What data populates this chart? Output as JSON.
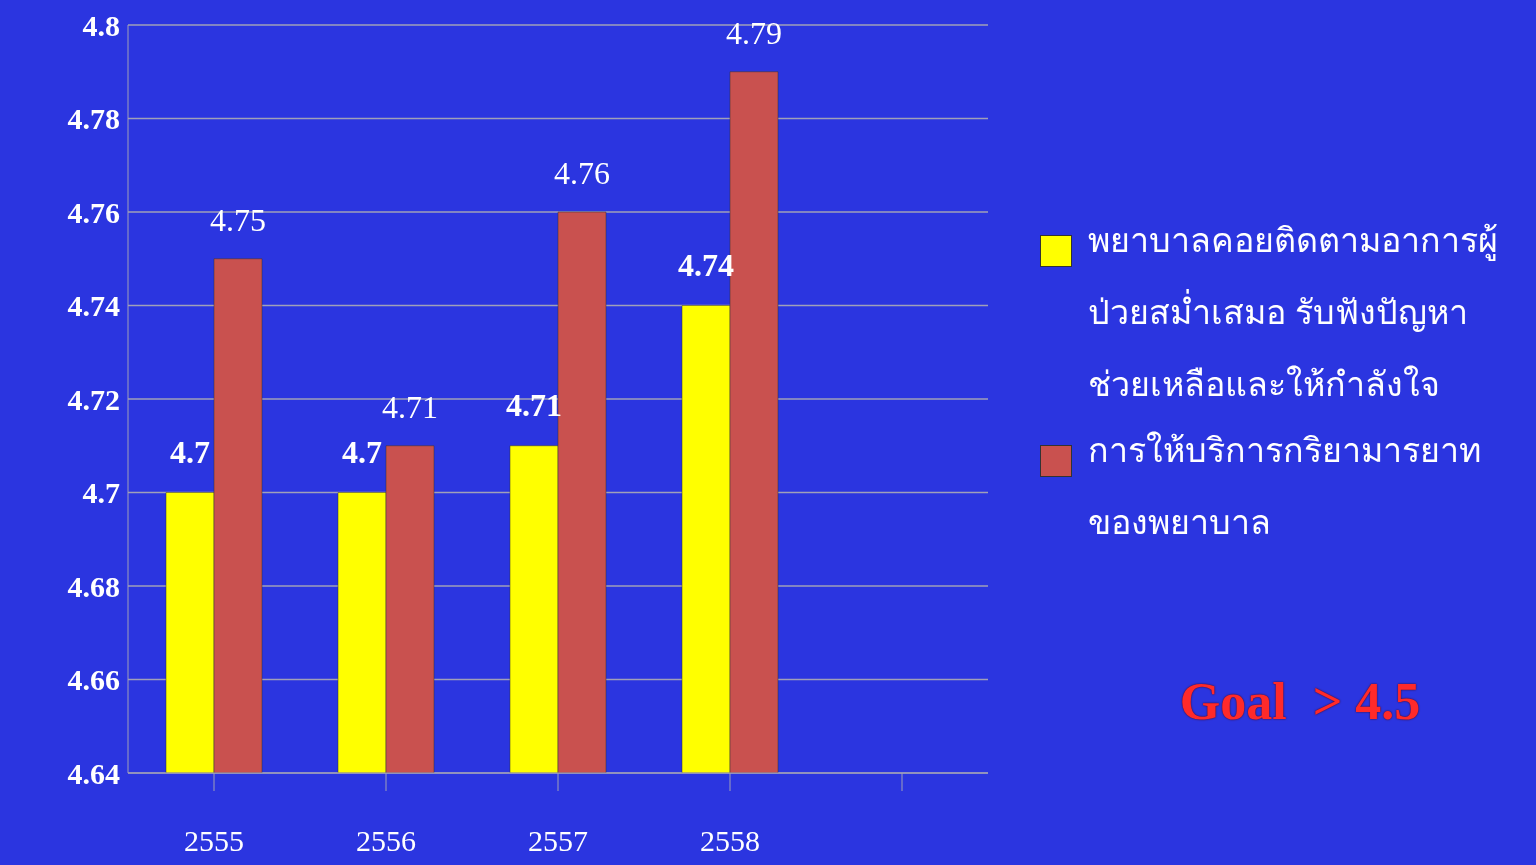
{
  "chart_data": {
    "type": "bar",
    "categories": [
      "2555",
      "2556",
      "2557",
      "2558",
      null
    ],
    "series": [
      {
        "name": "พยาบาลคอยติดตามอาการผู้ป่วยสม่ำเสมอ รับฟังปัญหาช่วยเหลือและให้กำลังใจ",
        "color": "#ffff00",
        "values": [
          4.7,
          4.7,
          4.71,
          4.74,
          null
        ]
      },
      {
        "name": "การให้บริการกริยามารยาทของพยาบาล",
        "color": "#c9514f",
        "values": [
          4.75,
          4.71,
          4.76,
          4.79,
          null
        ]
      }
    ],
    "ylim": [
      4.64,
      4.8
    ],
    "yticks": [
      4.64,
      4.66,
      4.68,
      4.7,
      4.72,
      4.74,
      4.76,
      4.78,
      4.8
    ],
    "grid": "y",
    "legend": "right",
    "data_labels": true,
    "annotations": [
      "Goal  > 4.5"
    ]
  }
}
